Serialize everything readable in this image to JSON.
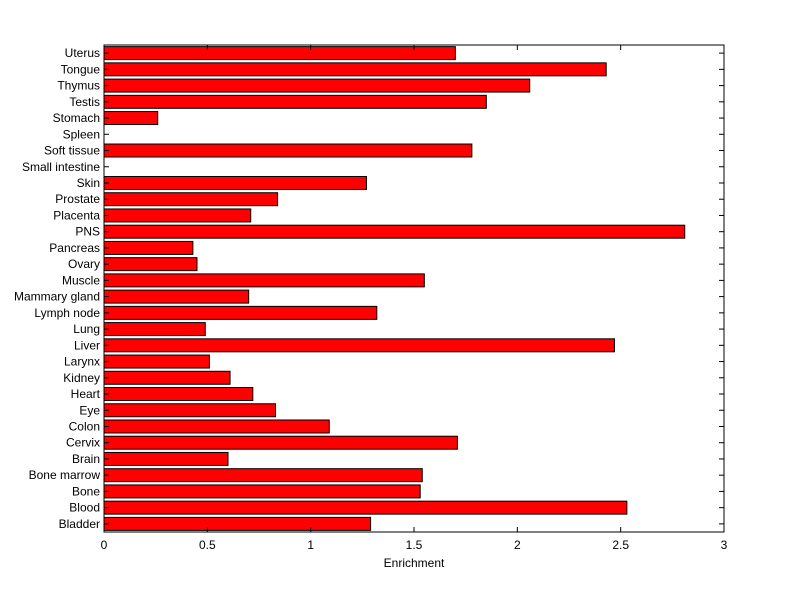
{
  "chart_data": {
    "type": "bar",
    "orientation": "horizontal",
    "xlabel": "Enrichment",
    "ylabel": "",
    "title": "",
    "xlim": [
      0,
      3
    ],
    "xticks": [
      0,
      0.5,
      1,
      1.5,
      2,
      2.5,
      3
    ],
    "xtick_labels": [
      "0",
      "0.5",
      "1",
      "1.5",
      "2",
      "2.5",
      "3"
    ],
    "grid": false,
    "bar_color": "#ff0000",
    "edge_color": "#000000",
    "categories": [
      "Bladder",
      "Blood",
      "Bone",
      "Bone marrow",
      "Brain",
      "Cervix",
      "Colon",
      "Eye",
      "Heart",
      "Kidney",
      "Larynx",
      "Liver",
      "Lung",
      "Lymph node",
      "Mammary gland",
      "Muscle",
      "Ovary",
      "Pancreas",
      "PNS",
      "Placenta",
      "Prostate",
      "Skin",
      "Small intestine",
      "Soft tissue",
      "Spleen",
      "Stomach",
      "Testis",
      "Thymus",
      "Tongue",
      "Uterus"
    ],
    "values": [
      1.29,
      2.53,
      1.53,
      1.54,
      0.6,
      1.71,
      1.09,
      0.83,
      0.72,
      0.61,
      0.51,
      2.47,
      0.49,
      1.32,
      0.7,
      1.55,
      0.45,
      0.43,
      2.81,
      0.71,
      0.84,
      1.27,
      0,
      1.78,
      0,
      0.26,
      1.85,
      2.06,
      2.43,
      1.7
    ]
  }
}
